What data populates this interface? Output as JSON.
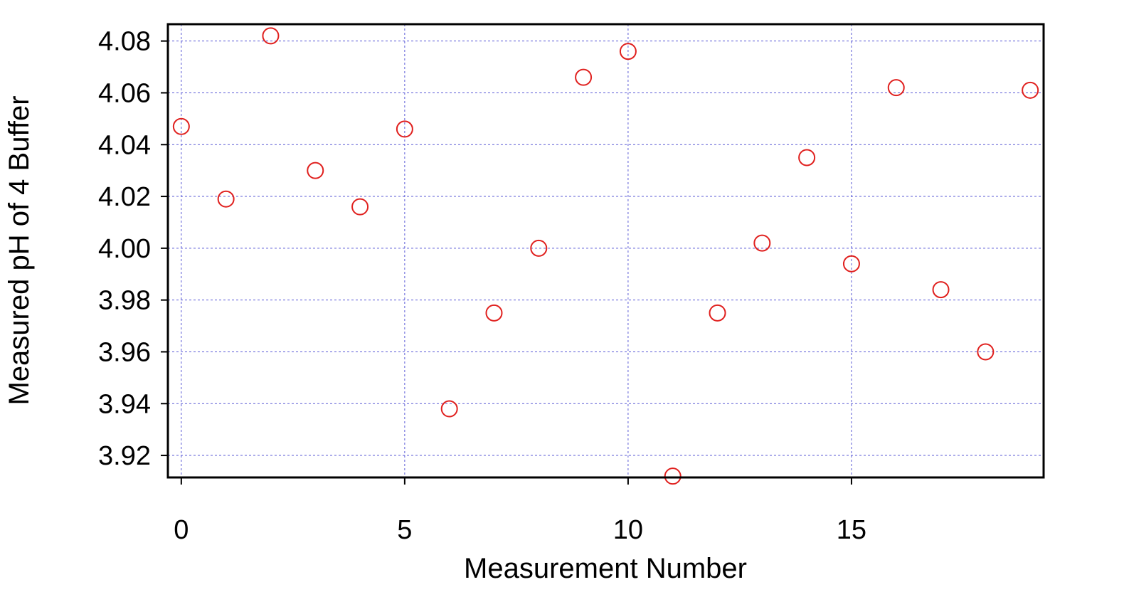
{
  "chart_data": {
    "type": "scatter",
    "xlabel": "Measurement Number",
    "ylabel": "Measured pH of 4 Buffer",
    "xlim": [
      -0.3,
      19.3
    ],
    "ylim": [
      3.9115,
      4.0865
    ],
    "x_ticks": [
      0,
      5,
      10,
      15
    ],
    "y_ticks": [
      3.92,
      3.94,
      3.96,
      3.98,
      4.0,
      4.02,
      4.04,
      4.06,
      4.08
    ],
    "y_tick_labels": [
      "3.92",
      "3.94",
      "3.96",
      "3.98",
      "4.00",
      "4.02",
      "4.04",
      "4.06",
      "4.08"
    ],
    "grid": true,
    "series": [
      {
        "x": [
          0,
          1,
          2,
          3,
          4,
          5,
          6,
          7,
          8,
          9,
          10,
          11,
          12,
          13,
          14,
          15,
          16,
          17,
          18,
          19
        ],
        "y": [
          4.047,
          4.019,
          4.082,
          4.03,
          4.016,
          4.046,
          3.938,
          3.975,
          4.0,
          4.066,
          4.076,
          3.912,
          3.975,
          4.002,
          4.035,
          3.994,
          4.062,
          3.984,
          3.96,
          4.061
        ]
      }
    ],
    "colors": {
      "marker": "#e0201e",
      "grid": "#5b5bd6",
      "frame": "#000000"
    },
    "marker": "open-circle"
  }
}
